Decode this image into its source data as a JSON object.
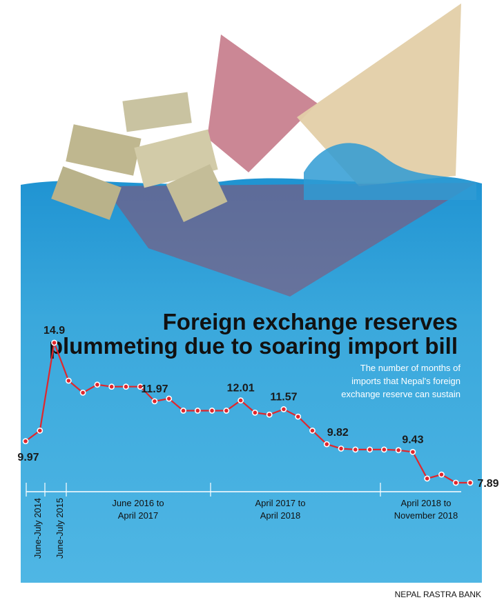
{
  "title_lines": [
    "Foreign exchange reserves",
    "plummeting due to soaring import bill"
  ],
  "subtitle_lines": [
    "The number of months of",
    "imports that Nepal's foreign",
    "exchange reserve can sustain"
  ],
  "source": "NEPAL RASTRA BANK",
  "colors": {
    "water": "#3aa8dc",
    "line": "#e0262c",
    "text": "#111111"
  },
  "chart_data": {
    "type": "line",
    "title": "Foreign exchange reserves plummeting due to soaring import bill",
    "subtitle": "The number of months of imports that Nepal's foreign exchange reserve can sustain",
    "xlabel": "",
    "ylabel": "",
    "ylim": [
      7.5,
      15.5
    ],
    "grid": false,
    "values": [
      9.97,
      10.5,
      14.9,
      13.0,
      12.4,
      12.8,
      12.7,
      12.7,
      12.7,
      11.97,
      12.1,
      11.5,
      11.5,
      11.5,
      11.5,
      12.01,
      11.4,
      11.3,
      11.57,
      11.2,
      10.5,
      9.82,
      9.6,
      9.55,
      9.55,
      9.55,
      9.52,
      9.43,
      8.1,
      8.3,
      7.89,
      7.89
    ],
    "labeled_points": [
      {
        "index": 0,
        "text": "9.97"
      },
      {
        "index": 2,
        "text": "14.9"
      },
      {
        "index": 9,
        "text": "11.97"
      },
      {
        "index": 15,
        "text": "12.01"
      },
      {
        "index": 18,
        "text": "11.57"
      },
      {
        "index": 21,
        "text": "9.82"
      },
      {
        "index": 27,
        "text": "9.43"
      },
      {
        "index": 31,
        "text": "7.89"
      }
    ],
    "period_labels": [
      {
        "text": "June-July 2014",
        "vertical": true
      },
      {
        "text": "June-July 2015",
        "vertical": true
      },
      {
        "lines": [
          "June 2016 to",
          "April 2017"
        ],
        "vertical": false
      },
      {
        "lines": [
          "April 2017 to",
          "April 2018"
        ],
        "vertical": false
      },
      {
        "lines": [
          "April 2018 to",
          "November 2018"
        ],
        "vertical": false
      }
    ]
  }
}
